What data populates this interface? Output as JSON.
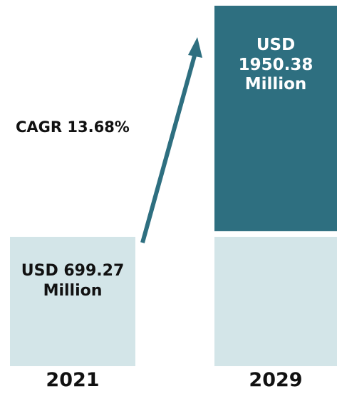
{
  "chart_data": {
    "type": "bar",
    "categories": [
      "2021",
      "2029"
    ],
    "values": [
      699.27,
      1950.38
    ],
    "value_labels": [
      "USD 699.27 Million",
      "USD 1950.38 Million"
    ],
    "value_label_lines": [
      [
        "USD 699.27",
        "Million"
      ],
      [
        "USD",
        "1950.38",
        "Million"
      ]
    ],
    "annotation": "CAGR 13.68%",
    "title": "",
    "xlabel": "",
    "ylabel": "",
    "grid": false,
    "stacked_base": true,
    "colors": {
      "base": "#d3e5e8",
      "growth": "#2e6f80",
      "arrow": "#2e6f80",
      "text_dark": "#111111",
      "text_light": "#ffffff"
    }
  }
}
